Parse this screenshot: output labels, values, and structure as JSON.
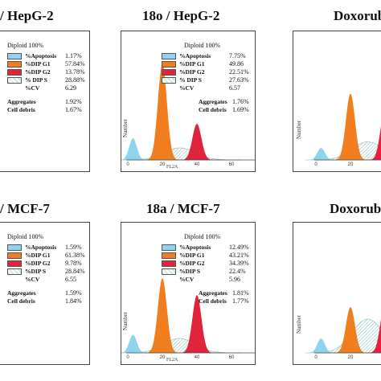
{
  "titles": {
    "p1": "/ HepG-2",
    "p2": "18o / HepG-2",
    "p3": "Doxorub",
    "p4": "/ MCF-7",
    "p5": "18a / MCF-7",
    "p6": "Doxorub"
  },
  "axis": {
    "ylabel": "Number",
    "xlabel": "FL2A"
  },
  "colors": {
    "apoptosis": "#8fd3ee",
    "g1": "#f07d1e",
    "g2": "#e0243c",
    "s": "#cfe8e4",
    "frame": "#444444"
  },
  "legends": {
    "p1": {
      "header": "Diploid 100%",
      "rows": [
        {
          "label": "%Apoptosis",
          "value": "1.17%"
        },
        {
          "label": "%DIP G1",
          "value": "57.84%"
        },
        {
          "label": "%DIP G2",
          "value": "13.78%"
        },
        {
          "label": "% DIP S",
          "value": "28.88%"
        },
        {
          "label": "%CV",
          "value": "6.29"
        }
      ],
      "aggregates_label": "Aggregates",
      "aggregates_value": "1.92%",
      "debris_label": "Cell debris",
      "debris_value": "1.67%"
    },
    "p2": {
      "header": "Diploid 100%",
      "rows": [
        {
          "label": "%Apoptosis",
          "value": "7.75%"
        },
        {
          "label": "%DIP G1",
          "value": "49.86"
        },
        {
          "label": "%DIP G2",
          "value": "22.51%"
        },
        {
          "label": "% DIP S",
          "value": "27.63%"
        },
        {
          "label": "%CV",
          "value": "6.57"
        }
      ],
      "aggregates_label": "Aggregates",
      "aggregates_value": "1.76%",
      "debris_label": "Cell debris",
      "debris_value": "1.69%"
    },
    "p4": {
      "header": "Diploid 100%",
      "rows": [
        {
          "label": "%Apoptosis",
          "value": "1.59%"
        },
        {
          "label": "%DIP G1",
          "value": "61.38%"
        },
        {
          "label": "%DIP G2",
          "value": "9.78%"
        },
        {
          "label": "%DIP S",
          "value": "28.84%"
        },
        {
          "label": "%CV",
          "value": "6.55"
        }
      ],
      "aggregates_label": "Aggregates",
      "aggregates_value": "1.59%",
      "debris_label": "Cell debris",
      "debris_value": "1.84%"
    },
    "p5": {
      "header": "Diploid 100%",
      "rows": [
        {
          "label": "%Apoptosis",
          "value": "12.49%"
        },
        {
          "label": "%DIP G1",
          "value": "43.21%"
        },
        {
          "label": "%DIP G2",
          "value": "34.39%"
        },
        {
          "label": "%DIP S",
          "value": "22.4%"
        },
        {
          "label": "%CV",
          "value": "5.96"
        }
      ],
      "aggregates_label": "Aggregates",
      "aggregates_value": "1.81%",
      "debris_label": "Cell debris",
      "debris_value": "1.77%"
    }
  },
  "chart_data": [
    {
      "type": "area",
      "title": "18o / HepG-2",
      "xlabel": "FL2A",
      "ylabel": "Number",
      "xlim": [
        0,
        75
      ],
      "ticks_x": [
        0,
        20,
        40,
        60
      ],
      "series": [
        {
          "name": "DIP G1",
          "peak_x": 20,
          "peak_height": 0.8
        },
        {
          "name": "DIP G2",
          "peak_x": 40,
          "peak_height": 0.3
        },
        {
          "name": "DIP S",
          "peak_x": 30,
          "peak_height": 0.1
        },
        {
          "name": "Apoptosis",
          "peak_x": 3,
          "peak_height": 0.18
        }
      ]
    },
    {
      "type": "area",
      "title": "Doxorub",
      "xlim": [
        0,
        75
      ],
      "ticks_x": [
        0,
        20,
        40
      ],
      "series": [
        {
          "name": "DIP G1",
          "peak_x": 20,
          "peak_height": 0.55
        },
        {
          "name": "DIP G2",
          "peak_x": 40,
          "peak_height": 0.42
        },
        {
          "name": "DIP S",
          "peak_x": 30,
          "peak_height": 0.15
        },
        {
          "name": "Apoptosis",
          "peak_x": 3,
          "peak_height": 0.1
        }
      ]
    },
    {
      "type": "area",
      "title": "18a / MCF-7",
      "xlabel": "FL2A",
      "ylabel": "Number",
      "xlim": [
        0,
        75
      ],
      "ticks_x": [
        0,
        20,
        40,
        60
      ],
      "series": [
        {
          "name": "DIP G1",
          "peak_x": 20,
          "peak_height": 0.62
        },
        {
          "name": "DIP G2",
          "peak_x": 40,
          "peak_height": 0.48
        },
        {
          "name": "DIP S",
          "peak_x": 30,
          "peak_height": 0.12
        },
        {
          "name": "Apoptosis",
          "peak_x": 3,
          "peak_height": 0.15
        }
      ]
    },
    {
      "type": "area",
      "title": "Doxorub",
      "xlim": [
        0,
        75
      ],
      "ticks_x": [
        0,
        20,
        40
      ],
      "series": [
        {
          "name": "DIP G1",
          "peak_x": 20,
          "peak_height": 0.38
        },
        {
          "name": "DIP G2",
          "peak_x": 40,
          "peak_height": 0.42
        },
        {
          "name": "DIP S",
          "peak_x": 30,
          "peak_height": 0.28
        },
        {
          "name": "Apoptosis",
          "peak_x": 3,
          "peak_height": 0.12
        }
      ]
    }
  ]
}
